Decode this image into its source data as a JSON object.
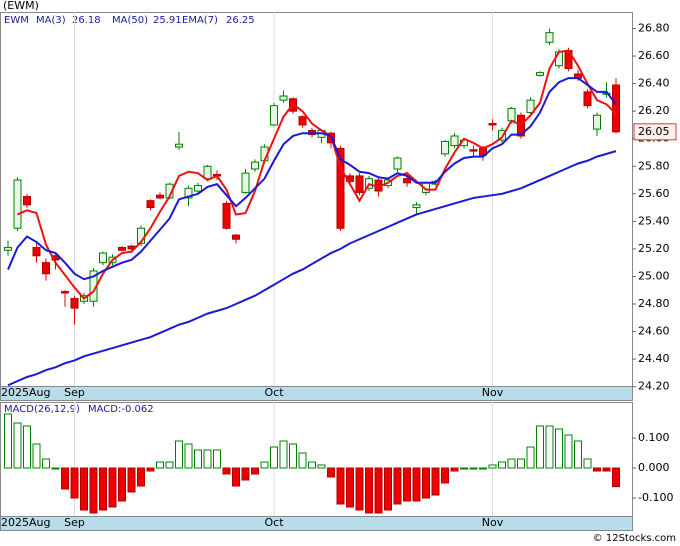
{
  "chart_data": [
    {
      "type": "candlestick",
      "title": "(EWM)",
      "legend_label": "EWM",
      "categories": [
        "2025Aug",
        null,
        null,
        null,
        null,
        null,
        null,
        "Sep",
        null,
        null,
        null,
        null,
        null,
        null,
        null,
        null,
        null,
        null,
        null,
        null,
        null,
        null,
        null,
        null,
        null,
        null,
        null,
        null,
        "Oct",
        null,
        null,
        null,
        null,
        null,
        null,
        null,
        null,
        null,
        null,
        null,
        null,
        null,
        null,
        null,
        null,
        null,
        null,
        null,
        null,
        null,
        null,
        "Nov",
        null,
        null,
        null,
        null,
        null,
        null,
        null,
        null,
        null,
        null,
        null,
        null,
        null
      ],
      "open": [
        25.19,
        25.35,
        25.58,
        25.21,
        25.1,
        25.15,
        24.89,
        24.84,
        24.82,
        24.82,
        25.1,
        25.1,
        25.21,
        25.22,
        25.24,
        25.55,
        25.59,
        25.57,
        25.94,
        25.57,
        25.62,
        25.71,
        25.74,
        25.53,
        25.3,
        25.61,
        25.78,
        25.84,
        26.1,
        26.28,
        26.29,
        26.16,
        26.06,
        26.01,
        26.04,
        25.93,
        25.73,
        25.73,
        25.64,
        25.7,
        25.66,
        25.78,
        25.71,
        25.5,
        25.61,
        25.67,
        25.89,
        25.95,
        25.95,
        25.92,
        25.93,
        26.11,
        25.99,
        26.13,
        26.17,
        26.19,
        26.46,
        26.7,
        26.53,
        26.64,
        26.47,
        26.34,
        26.07,
        26.33,
        26.39
      ],
      "high": [
        25.26,
        25.72,
        25.6,
        25.25,
        25.13,
        25.16,
        24.9,
        24.86,
        24.88,
        25.06,
        25.18,
        25.16,
        25.22,
        25.23,
        25.37,
        25.56,
        25.61,
        25.68,
        26.05,
        25.66,
        25.68,
        25.81,
        25.77,
        25.55,
        25.31,
        25.78,
        25.85,
        25.96,
        26.26,
        26.35,
        26.3,
        26.17,
        26.08,
        26.07,
        26.05,
        25.95,
        25.75,
        25.75,
        25.73,
        25.72,
        25.72,
        25.87,
        25.74,
        25.54,
        25.69,
        25.7,
        25.99,
        26.04,
        26.0,
        25.95,
        25.95,
        26.14,
        26.08,
        26.23,
        26.19,
        26.3,
        26.49,
        26.8,
        26.65,
        26.66,
        26.5,
        26.36,
        26.19,
        26.41,
        26.44
      ],
      "low": [
        25.15,
        25.33,
        25.5,
        25.1,
        24.97,
        25.05,
        24.78,
        24.65,
        24.8,
        24.78,
        25.08,
        25.08,
        25.18,
        25.19,
        25.22,
        25.48,
        25.56,
        25.56,
        25.92,
        25.51,
        25.6,
        25.69,
        25.7,
        25.34,
        25.24,
        25.6,
        25.76,
        25.82,
        26.09,
        26.26,
        26.18,
        26.08,
        26.01,
        25.97,
        25.93,
        25.33,
        25.67,
        25.59,
        25.62,
        25.58,
        25.64,
        25.76,
        25.65,
        25.45,
        25.59,
        25.66,
        25.87,
        25.93,
        25.93,
        25.87,
        25.84,
        26.06,
        25.97,
        26.11,
        26.0,
        26.17,
        26.45,
        26.68,
        26.51,
        26.49,
        26.42,
        26.22,
        26.02,
        26.3,
        26.04
      ],
      "close": [
        25.21,
        25.7,
        25.52,
        25.15,
        25.02,
        25.12,
        24.88,
        24.77,
        24.86,
        25.04,
        25.17,
        25.14,
        25.19,
        25.2,
        25.35,
        25.5,
        25.57,
        25.67,
        25.96,
        25.64,
        25.66,
        25.8,
        25.73,
        25.35,
        25.27,
        25.75,
        25.83,
        25.94,
        26.24,
        26.31,
        26.2,
        26.1,
        26.03,
        26.06,
        25.97,
        25.35,
        25.69,
        25.61,
        25.71,
        25.62,
        25.7,
        25.86,
        25.68,
        25.52,
        25.68,
        25.69,
        25.98,
        26.02,
        25.99,
        25.91,
        25.88,
        26.1,
        26.06,
        26.22,
        26.02,
        26.28,
        26.48,
        26.77,
        26.63,
        26.51,
        26.44,
        26.24,
        26.17,
        26.33,
        26.05
      ],
      "up_color": "#008000",
      "down_color": "#ee0000",
      "lines": [
        {
          "name": "MA(3)",
          "last": 26.18,
          "color": "#ee1111",
          "values": [
            null,
            25.45,
            25.48,
            25.46,
            25.23,
            25.1,
            25.01,
            24.92,
            24.84,
            24.89,
            25.02,
            25.12,
            25.17,
            25.18,
            25.25,
            25.35,
            25.47,
            25.58,
            25.73,
            25.76,
            25.75,
            25.7,
            25.73,
            25.63,
            25.45,
            25.46,
            25.62,
            25.84,
            26.0,
            26.16,
            26.25,
            26.2,
            26.11,
            26.06,
            26.02,
            25.79,
            25.67,
            25.55,
            25.67,
            25.65,
            25.68,
            25.73,
            25.75,
            25.69,
            25.63,
            25.63,
            25.78,
            25.9,
            26.0,
            25.97,
            25.93,
            25.96,
            26.01,
            26.13,
            26.1,
            26.17,
            26.26,
            26.51,
            26.63,
            26.64,
            26.53,
            26.4,
            26.28,
            26.25,
            26.18
          ]
        },
        {
          "name": "MA(50)",
          "last": 25.91,
          "color": "#1a1ad6",
          "values": [
            24.21,
            24.24,
            24.27,
            24.29,
            24.32,
            24.34,
            24.37,
            24.39,
            24.42,
            24.44,
            24.46,
            24.48,
            24.5,
            24.52,
            24.54,
            24.56,
            24.59,
            24.62,
            24.65,
            24.67,
            24.7,
            24.73,
            24.75,
            24.77,
            24.8,
            24.83,
            24.86,
            24.9,
            24.94,
            24.98,
            25.02,
            25.05,
            25.09,
            25.13,
            25.17,
            25.2,
            25.24,
            25.27,
            25.3,
            25.33,
            25.36,
            25.39,
            25.42,
            25.45,
            25.47,
            25.49,
            25.51,
            25.53,
            25.55,
            25.57,
            25.58,
            25.59,
            25.6,
            25.62,
            25.64,
            25.67,
            25.7,
            25.73,
            25.76,
            25.79,
            25.82,
            25.84,
            25.87,
            25.89,
            25.91
          ]
        },
        {
          "name": "EMA(7)",
          "last": 26.25,
          "color": "#1a1ad6",
          "values": [
            25.05,
            25.21,
            25.29,
            25.25,
            25.19,
            25.17,
            25.1,
            25.02,
            24.98,
            25.0,
            25.04,
            25.07,
            25.1,
            25.12,
            25.18,
            25.26,
            25.34,
            25.42,
            25.56,
            25.58,
            25.6,
            25.65,
            25.67,
            25.59,
            25.51,
            25.57,
            25.64,
            25.71,
            25.84,
            25.96,
            26.02,
            26.04,
            26.04,
            26.04,
            26.02,
            25.85,
            25.81,
            25.76,
            25.75,
            25.72,
            25.71,
            25.75,
            25.73,
            25.68,
            25.68,
            25.68,
            25.76,
            25.82,
            25.86,
            25.87,
            25.87,
            25.93,
            25.96,
            26.03,
            26.03,
            26.09,
            26.19,
            26.34,
            26.41,
            26.44,
            26.44,
            26.39,
            26.34,
            26.34,
            26.25
          ]
        }
      ],
      "last_price": 26.05,
      "ylim": [
        24.19,
        26.92
      ],
      "yticks": [
        {
          "value": 24.2,
          "label": "24.20"
        },
        {
          "value": 24.4,
          "label": "24.40"
        },
        {
          "value": 24.6,
          "label": "24.60"
        },
        {
          "value": 24.8,
          "label": "24.80"
        },
        {
          "value": 25.0,
          "label": "25.00"
        },
        {
          "value": 25.2,
          "label": "25.20"
        },
        {
          "value": 25.4,
          "label": "25.40"
        },
        {
          "value": 25.6,
          "label": "25.60"
        },
        {
          "value": 25.8,
          "label": "25.80"
        },
        {
          "value": 26.0,
          "label": "26.00"
        },
        {
          "value": 26.2,
          "label": "26.20"
        },
        {
          "value": 26.4,
          "label": "26.40"
        },
        {
          "value": 26.6,
          "label": "26.60"
        },
        {
          "value": 26.8,
          "label": "26.80"
        }
      ]
    },
    {
      "type": "bar",
      "title": "MACD(26,12,9)",
      "categories": [
        "2025Aug",
        null,
        null,
        null,
        null,
        null,
        null,
        "Sep",
        null,
        null,
        null,
        null,
        null,
        null,
        null,
        null,
        null,
        null,
        null,
        null,
        null,
        null,
        null,
        null,
        null,
        null,
        null,
        null,
        "Oct",
        null,
        null,
        null,
        null,
        null,
        null,
        null,
        null,
        null,
        null,
        null,
        null,
        null,
        null,
        null,
        null,
        null,
        null,
        null,
        null,
        null,
        null,
        "Nov",
        null,
        null,
        null,
        null,
        null,
        null,
        null,
        null,
        null,
        null,
        null,
        null,
        null
      ],
      "series": [
        {
          "name": "MACD:-0.062",
          "up_color": "#008000",
          "down_color": "#ee0000",
          "values": [
            0.18,
            0.15,
            0.14,
            0.08,
            0.03,
            0.0,
            -0.07,
            -0.1,
            -0.14,
            -0.15,
            -0.14,
            -0.13,
            -0.11,
            -0.08,
            -0.06,
            -0.01,
            0.02,
            0.02,
            0.09,
            0.08,
            0.06,
            0.06,
            0.06,
            -0.02,
            -0.06,
            -0.04,
            -0.02,
            0.02,
            0.07,
            0.09,
            0.08,
            0.05,
            0.02,
            0.01,
            -0.03,
            -0.12,
            -0.13,
            -0.14,
            -0.15,
            -0.15,
            -0.14,
            -0.12,
            -0.11,
            -0.11,
            -0.1,
            -0.09,
            -0.05,
            -0.01,
            0.0,
            0.0,
            0.0,
            0.01,
            0.02,
            0.03,
            0.03,
            0.07,
            0.14,
            0.14,
            0.13,
            0.11,
            0.09,
            0.03,
            -0.01,
            -0.01,
            -0.062
          ]
        }
      ],
      "ylim": [
        -0.16,
        0.22
      ],
      "yticks": [
        {
          "value": 0.1,
          "label": "0.100"
        },
        {
          "value": 0,
          "label": "0.000"
        },
        {
          "value": -0.1,
          "label": "-0.100"
        }
      ]
    }
  ],
  "watermark": "© 12Stocks.com"
}
